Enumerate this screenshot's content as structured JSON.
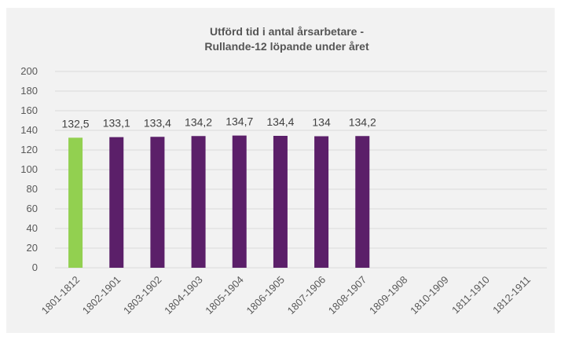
{
  "chart_data": {
    "type": "bar",
    "title_lines": [
      "Utförd tid i antal årsarbetare -",
      "Rullande-12 löpande under året"
    ],
    "categories": [
      "1801-1812",
      "1802-1901",
      "1803-1902",
      "1804-1903",
      "1805-1904",
      "1806-1905",
      "1807-1906",
      "1808-1907",
      "1809-1908",
      "1810-1909",
      "1811-1910",
      "1812-1911"
    ],
    "values": [
      132.5,
      133.1,
      133.4,
      134.2,
      134.7,
      134.4,
      134,
      134.2,
      null,
      null,
      null,
      null
    ],
    "value_labels": [
      "132,5",
      "133,1",
      "133,4",
      "134,2",
      "134,7",
      "134,4",
      "134",
      "134,2",
      "",
      "",
      "",
      ""
    ],
    "bar_colors": [
      "#92d050",
      "#5b1f69",
      "#5b1f69",
      "#5b1f69",
      "#5b1f69",
      "#5b1f69",
      "#5b1f69",
      "#5b1f69",
      "#5b1f69",
      "#5b1f69",
      "#5b1f69",
      "#5b1f69"
    ],
    "y_ticks": [
      "0",
      "20",
      "40",
      "60",
      "80",
      "100",
      "120",
      "140",
      "160",
      "180",
      "200"
    ],
    "ylim": [
      0,
      200
    ],
    "grid": true,
    "legend": "none"
  }
}
